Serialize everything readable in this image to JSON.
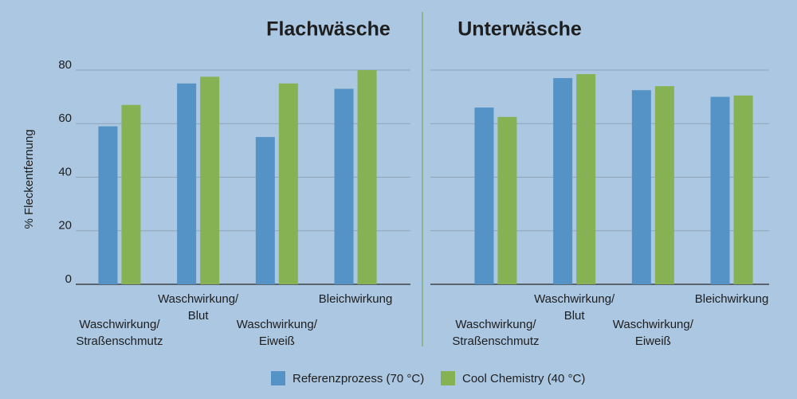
{
  "chart_data": [
    {
      "type": "bar",
      "title": "Flachwäsche",
      "ylabel": "% Fleckentfernung",
      "categories": [
        "Waschwirkung/\nStraßenschmutz",
        "Waschwirkung/\nBlut",
        "Waschwirkung/\nEiweiß",
        "Bleichwirkung"
      ],
      "series": [
        {
          "name": "Referenzprozess (70 °C)",
          "color": "#5592c6",
          "values": [
            59,
            75,
            55,
            73
          ]
        },
        {
          "name": "Cool Chemistry (40 °C)",
          "color": "#86b253",
          "values": [
            67,
            77.5,
            75,
            80
          ]
        }
      ],
      "ylim": [
        0,
        80
      ],
      "yticks": [
        0,
        20,
        40,
        60,
        80
      ],
      "grid": true
    },
    {
      "type": "bar",
      "title": "Unterwäsche",
      "categories": [
        "Waschwirkung/\nStraßenschmutz",
        "Waschwirkung/\nBlut",
        "Waschwirkung/\nEiweiß",
        "Bleichwirkung"
      ],
      "series": [
        {
          "color": "#5592c6",
          "values": [
            66,
            77,
            72.5,
            70
          ]
        },
        {
          "color": "#86b253",
          "values": [
            62.5,
            78.5,
            74,
            70.5
          ]
        }
      ],
      "ylim": [
        0,
        80
      ],
      "yticks": [
        0,
        20,
        40,
        60,
        80
      ],
      "ytick_labels": false,
      "grid": true
    }
  ]
}
